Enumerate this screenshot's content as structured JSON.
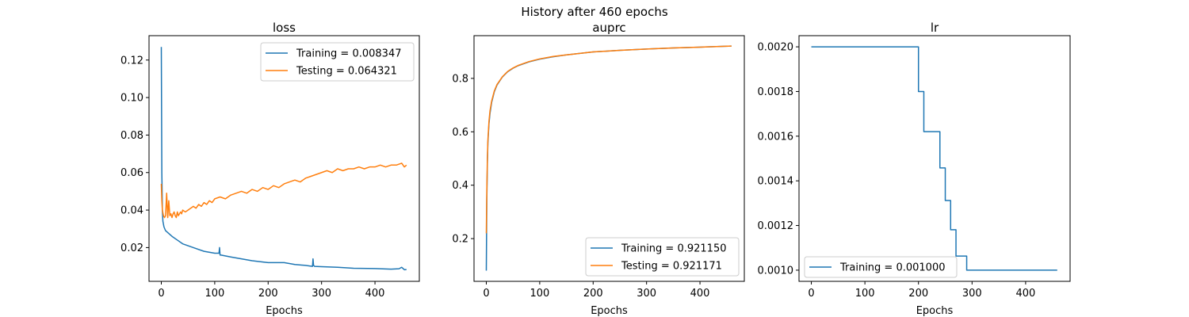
{
  "figure_title": "History after 460 epochs",
  "chart_data": [
    {
      "type": "line",
      "title": "loss",
      "xlabel": "Epochs",
      "ylabel": "",
      "xlim": [
        -23,
        483
      ],
      "ylim": [
        0.002,
        0.133
      ],
      "xticks": [
        0,
        100,
        200,
        300,
        400
      ],
      "xtick_labels": [
        "0",
        "100",
        "200",
        "300",
        "400"
      ],
      "yticks": [
        0.02,
        0.04,
        0.06,
        0.08,
        0.1,
        0.12
      ],
      "ytick_labels": [
        "0.02",
        "0.04",
        "0.06",
        "0.08",
        "0.10",
        "0.12"
      ],
      "grid": false,
      "legend_position": "upper right",
      "series": [
        {
          "name": "Training",
          "legend_label": "Training = 0.008347",
          "color": "#1f77b4",
          "x": [
            0,
            1,
            2,
            3,
            5,
            8,
            12,
            16,
            20,
            30,
            40,
            60,
            80,
            100,
            108,
            109,
            110,
            112,
            130,
            150,
            170,
            200,
            230,
            250,
            270,
            283,
            284,
            285,
            287,
            300,
            330,
            360,
            400,
            430,
            445,
            450,
            455,
            459
          ],
          "y": [
            0.127,
            0.06,
            0.04,
            0.034,
            0.031,
            0.029,
            0.028,
            0.027,
            0.026,
            0.024,
            0.022,
            0.02,
            0.018,
            0.017,
            0.017,
            0.02,
            0.016,
            0.016,
            0.015,
            0.014,
            0.013,
            0.012,
            0.012,
            0.011,
            0.0105,
            0.01,
            0.014,
            0.0105,
            0.01,
            0.0098,
            0.0095,
            0.009,
            0.0088,
            0.0085,
            0.0087,
            0.0095,
            0.0082,
            0.0083
          ],
          "final_value": 0.008347
        },
        {
          "name": "Testing",
          "legend_label": "Testing = 0.064321",
          "color": "#ff7f0e",
          "x": [
            0,
            1,
            2,
            4,
            6,
            8,
            10,
            12,
            14,
            16,
            18,
            20,
            22,
            24,
            26,
            28,
            30,
            32,
            34,
            36,
            38,
            40,
            45,
            50,
            55,
            60,
            65,
            70,
            75,
            80,
            85,
            90,
            95,
            100,
            110,
            120,
            130,
            140,
            150,
            160,
            170,
            180,
            190,
            200,
            210,
            220,
            230,
            240,
            250,
            260,
            270,
            280,
            290,
            300,
            310,
            320,
            330,
            340,
            350,
            360,
            370,
            380,
            390,
            400,
            410,
            420,
            430,
            440,
            450,
            455,
            459
          ],
          "y": [
            0.054,
            0.045,
            0.04,
            0.037,
            0.036,
            0.037,
            0.049,
            0.036,
            0.045,
            0.037,
            0.038,
            0.036,
            0.038,
            0.039,
            0.037,
            0.036,
            0.039,
            0.037,
            0.038,
            0.039,
            0.038,
            0.04,
            0.039,
            0.04,
            0.041,
            0.042,
            0.041,
            0.043,
            0.042,
            0.044,
            0.043,
            0.045,
            0.044,
            0.046,
            0.047,
            0.046,
            0.048,
            0.049,
            0.05,
            0.049,
            0.051,
            0.05,
            0.052,
            0.051,
            0.053,
            0.052,
            0.054,
            0.055,
            0.056,
            0.055,
            0.057,
            0.058,
            0.059,
            0.06,
            0.061,
            0.06,
            0.062,
            0.061,
            0.062,
            0.062,
            0.063,
            0.062,
            0.063,
            0.063,
            0.064,
            0.063,
            0.064,
            0.064,
            0.065,
            0.063,
            0.064
          ],
          "final_value": 0.064321
        }
      ]
    },
    {
      "type": "line",
      "title": "auprc",
      "xlabel": "Epochs",
      "ylabel": "",
      "xlim": [
        -23,
        483
      ],
      "ylim": [
        0.04,
        0.96
      ],
      "xticks": [
        0,
        100,
        200,
        300,
        400
      ],
      "xtick_labels": [
        "0",
        "100",
        "200",
        "300",
        "400"
      ],
      "yticks": [
        0.2,
        0.4,
        0.6,
        0.8
      ],
      "ytick_labels": [
        "0.2",
        "0.4",
        "0.6",
        "0.8"
      ],
      "grid": false,
      "legend_position": "lower right",
      "series": [
        {
          "name": "Training",
          "legend_label": "Training = 0.921150",
          "color": "#1f77b4",
          "x": [
            0,
            1,
            2,
            3,
            5,
            7,
            10,
            15,
            20,
            30,
            40,
            50,
            60,
            80,
            100,
            125,
            150,
            200,
            250,
            300,
            350,
            400,
            459
          ],
          "y": [
            0.08,
            0.35,
            0.48,
            0.56,
            0.63,
            0.67,
            0.71,
            0.75,
            0.775,
            0.805,
            0.825,
            0.838,
            0.848,
            0.862,
            0.872,
            0.881,
            0.888,
            0.899,
            0.905,
            0.91,
            0.914,
            0.917,
            0.921
          ]
        },
        {
          "name": "Testing",
          "legend_label": "Testing = 0.921171",
          "color": "#ff7f0e",
          "x": [
            0,
            1,
            2,
            3,
            5,
            7,
            10,
            15,
            20,
            30,
            40,
            50,
            60,
            80,
            100,
            125,
            150,
            200,
            250,
            300,
            350,
            400,
            459
          ],
          "y": [
            0.22,
            0.38,
            0.5,
            0.57,
            0.64,
            0.68,
            0.715,
            0.753,
            0.777,
            0.806,
            0.826,
            0.839,
            0.849,
            0.863,
            0.873,
            0.882,
            0.888,
            0.899,
            0.905,
            0.91,
            0.914,
            0.917,
            0.921
          ]
        }
      ]
    },
    {
      "type": "line",
      "title": "lr",
      "xlabel": "Epochs",
      "ylabel": "",
      "xlim": [
        -23,
        483
      ],
      "ylim": [
        0.00095,
        0.00205
      ],
      "xticks": [
        0,
        100,
        200,
        300,
        400
      ],
      "xtick_labels": [
        "0",
        "100",
        "200",
        "300",
        "400"
      ],
      "yticks": [
        0.001,
        0.0012,
        0.0014,
        0.0016,
        0.0018,
        0.002
      ],
      "ytick_labels": [
        "0.0010",
        "0.0012",
        "0.0014",
        "0.0016",
        "0.0018",
        "0.0020"
      ],
      "grid": false,
      "legend_position": "lower left",
      "series": [
        {
          "name": "Training",
          "legend_label": "Training = 0.001000",
          "color": "#1f77b4",
          "x": [
            0,
            200,
            200,
            210,
            210,
            240,
            240,
            250,
            250,
            260,
            260,
            270,
            270,
            280,
            280,
            290,
            290,
            459
          ],
          "y": [
            0.002,
            0.002,
            0.0018,
            0.0018,
            0.00162,
            0.00162,
            0.001458,
            0.001458,
            0.001312,
            0.001312,
            0.001181,
            0.001181,
            0.001063,
            0.001063,
            0.001063,
            0.001063,
            0.001,
            0.001
          ]
        }
      ]
    }
  ]
}
